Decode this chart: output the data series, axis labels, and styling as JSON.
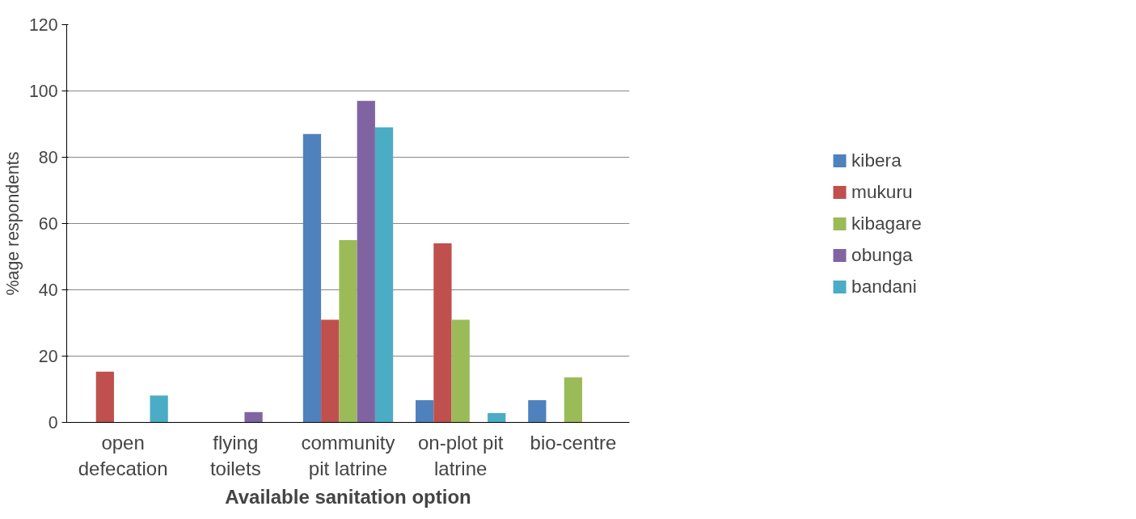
{
  "chart_data": {
    "type": "bar",
    "xlabel": "Available sanitation option",
    "ylabel": "%age respondents",
    "categories": [
      "open defecation",
      "flying toilets",
      "community pit latrine",
      "on-plot pit latrine",
      "bio-centre"
    ],
    "series": [
      {
        "name": "kibera",
        "color": "#4f81bd",
        "values": [
          0,
          0,
          87,
          6.7,
          6.7
        ]
      },
      {
        "name": "mukuru",
        "color": "#c0504d",
        "values": [
          15.3,
          0,
          31,
          54,
          0
        ]
      },
      {
        "name": "kibagare",
        "color": "#9bbb59",
        "values": [
          0,
          0,
          55,
          31,
          13.6
        ]
      },
      {
        "name": "obunga",
        "color": "#8064a2",
        "values": [
          0,
          3.1,
          97,
          0,
          0
        ]
      },
      {
        "name": "bandani",
        "color": "#4bacc6",
        "values": [
          8.1,
          0,
          89,
          2.8,
          0
        ]
      }
    ],
    "ylim": [
      0,
      120
    ],
    "yticks": [
      0,
      20,
      40,
      60,
      80,
      100,
      120
    ],
    "grid": "y",
    "legend": "right"
  }
}
